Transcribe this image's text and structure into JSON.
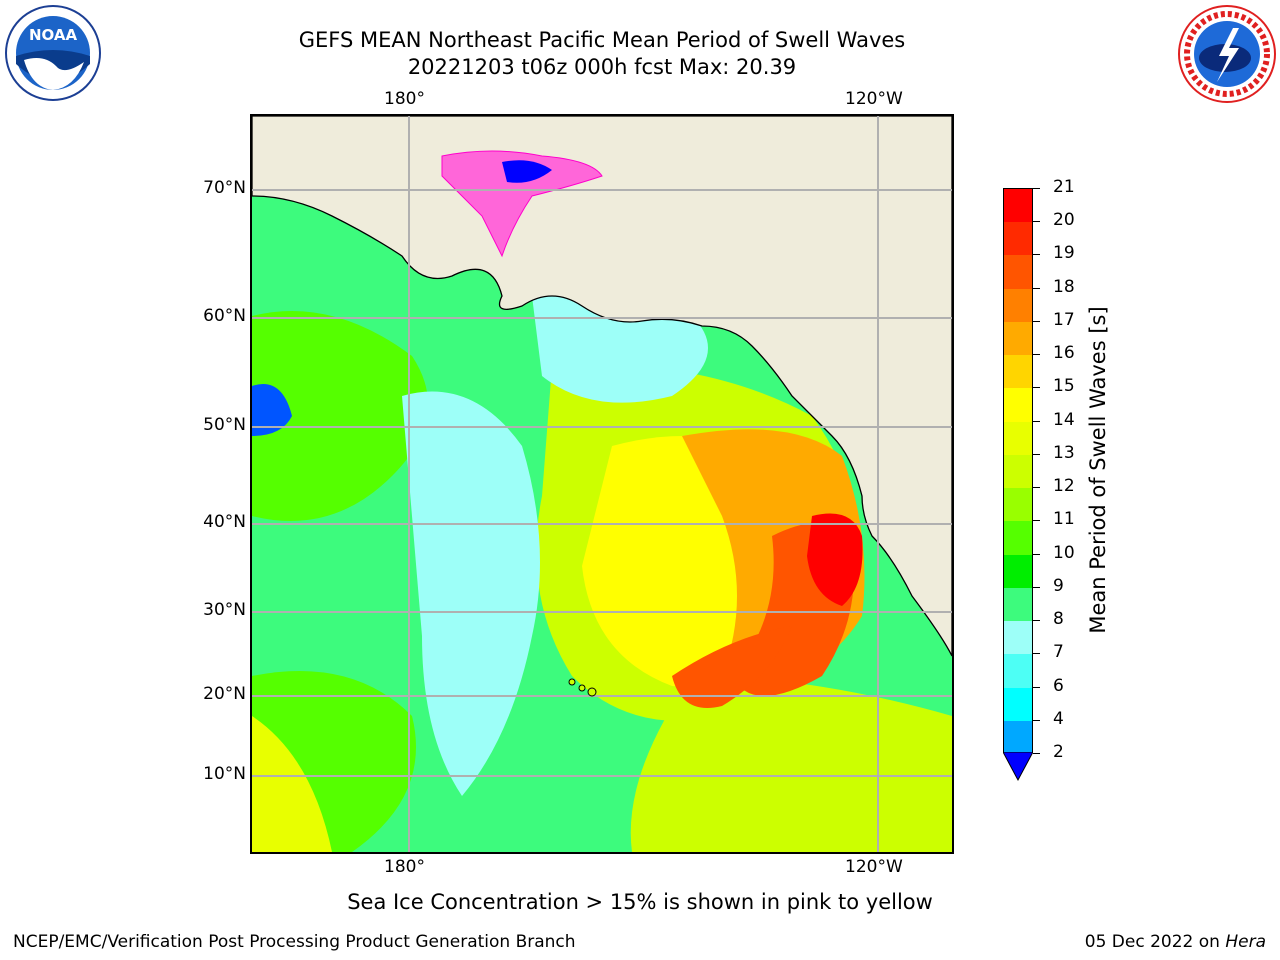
{
  "header": {
    "title_line1": "GEFS MEAN Northeast Pacific Mean Period of Swell Waves",
    "title_line2": "20221203 t06z 000h fcst   Max: 20.39"
  },
  "logos": {
    "left": "NOAA",
    "right": "NATIONAL WEATHER SERVICE"
  },
  "map": {
    "lon_labels": [
      "180°",
      "120°W"
    ],
    "lat_labels": [
      "70°N",
      "60°N",
      "50°N",
      "40°N",
      "30°N",
      "20°N",
      "10°N"
    ],
    "land_color": "#efecdb",
    "grid_color": "#b0b0b0"
  },
  "colorbar": {
    "label": "Mean Period of Swell Waves [s]",
    "ticks": [
      "21",
      "20",
      "19",
      "18",
      "17",
      "16",
      "15",
      "14",
      "13",
      "12",
      "11",
      "10",
      "9",
      "8",
      "7",
      "6",
      "4",
      "2"
    ],
    "colors": [
      "#ff0000",
      "#ff2a00",
      "#ff5500",
      "#ff8000",
      "#ffaa00",
      "#ffd500",
      "#ffff00",
      "#e8ff00",
      "#ccff00",
      "#99ff00",
      "#55ff00",
      "#00ee00",
      "#3dfb7d",
      "#9dfff8",
      "#4dfff5",
      "#00ffff",
      "#00a8ff",
      "#0055ff"
    ],
    "extend_color": "#0000ff"
  },
  "note": "Sea Ice Concentration > 15% is shown in pink to yellow",
  "footer": {
    "left": "NCEP/EMC/Verification Post Processing Product Generation Branch",
    "right_prefix": "05 Dec 2022 on ",
    "right_host": "Hera"
  }
}
